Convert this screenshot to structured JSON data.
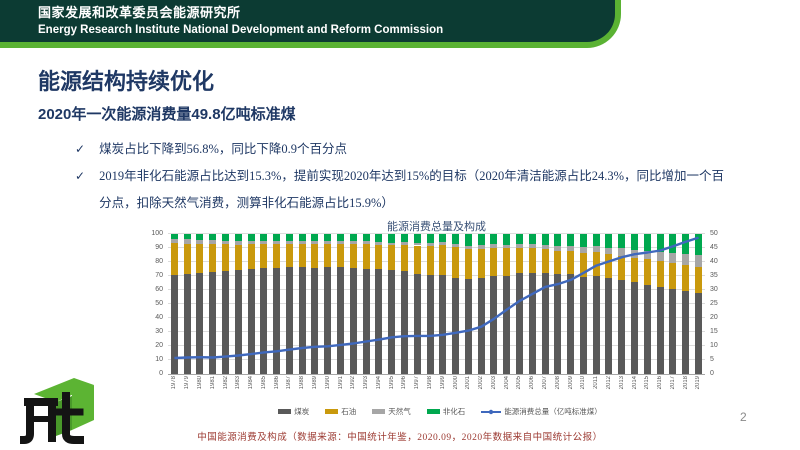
{
  "header": {
    "org_cn": "国家发展和改革委员会能源研究所",
    "org_en": "Energy Research Institute National Development and Reform Commission"
  },
  "slide": {
    "title": "能源结构持续优化",
    "subtitle": "2020年一次能源消费量49.8亿吨标准煤",
    "check_glyph": "✓",
    "bullets": [
      "煤炭占比下降到56.8%，同比下降0.9个百分点",
      "2019年非化石能源占比达到15.3%，提前实现2020年达到15%的目标（2020年清洁能源占比24.3%，同比增加一个百分点，扣除天然气消费，测算非化石能源占比15.9%）"
    ],
    "caption": "中国能源消费及构成（数据来源：中国统计年鉴，2020.09，2020年数据来自中国统计公报）",
    "page_number": "2"
  },
  "colors": {
    "header_dark": "#0c3b33",
    "header_green": "#5ab233",
    "title_navy": "#1f3864",
    "caption_red": "#9c3a32",
    "grid": "#dcdcdc",
    "axis_text": "#595959"
  },
  "chart_data": {
    "type": "bar",
    "subtype": "100%-stacked bars with line overlay",
    "title": "能源消费总量及构成",
    "grid": true,
    "legend_position": "bottom",
    "left_axis": {
      "min": 0,
      "max": 100,
      "step": 10
    },
    "right_axis": {
      "min": 0,
      "max": 50,
      "step": 5
    },
    "categories": [
      "1978",
      "1979",
      "1980",
      "1981",
      "1982",
      "1983",
      "1984",
      "1985",
      "1986",
      "1987",
      "1988",
      "1989",
      "1990",
      "1991",
      "1992",
      "1993",
      "1994",
      "1995",
      "1996",
      "1997",
      "1998",
      "1999",
      "2000",
      "2001",
      "2002",
      "2003",
      "2004",
      "2005",
      "2006",
      "2007",
      "2008",
      "2009",
      "2010",
      "2011",
      "2012",
      "2013",
      "2014",
      "2015",
      "2016",
      "2017",
      "2018",
      "2019"
    ],
    "series": [
      {
        "name": "煤炭",
        "color": "#595959",
        "values": [
          70.7,
          71.3,
          72.2,
          72.7,
          73.7,
          74.2,
          75.3,
          75.8,
          75.8,
          76.2,
          76.2,
          76.0,
          76.2,
          76.1,
          75.7,
          74.7,
          75.0,
          74.6,
          73.5,
          71.4,
          70.9,
          70.6,
          68.5,
          68.0,
          68.5,
          70.2,
          70.2,
          72.4,
          72.4,
          72.5,
          71.5,
          71.6,
          69.2,
          70.2,
          68.5,
          67.4,
          65.8,
          63.8,
          62.2,
          60.6,
          59.0,
          57.7
        ]
      },
      {
        "name": "石油",
        "color": "#c9990d",
        "values": [
          22.7,
          21.8,
          20.7,
          20.0,
          18.9,
          18.1,
          17.4,
          17.1,
          17.2,
          17.0,
          17.0,
          17.1,
          16.6,
          17.1,
          17.5,
          18.2,
          17.4,
          17.5,
          18.7,
          20.4,
          20.8,
          21.5,
          22.0,
          21.2,
          21.0,
          20.1,
          19.9,
          17.8,
          17.5,
          17.0,
          16.7,
          16.4,
          17.4,
          16.8,
          17.0,
          17.1,
          17.3,
          18.4,
          18.7,
          18.9,
          18.9,
          19.0
        ]
      },
      {
        "name": "天然气",
        "color": "#a6a6a6",
        "values": [
          3.2,
          3.3,
          3.1,
          2.8,
          2.5,
          2.4,
          2.4,
          2.2,
          2.3,
          2.1,
          2.1,
          2.0,
          2.1,
          2.0,
          1.9,
          1.9,
          1.9,
          1.8,
          1.8,
          1.8,
          1.8,
          2.0,
          2.2,
          2.4,
          2.3,
          2.3,
          2.3,
          2.4,
          2.7,
          3.0,
          3.4,
          3.5,
          4.0,
          4.6,
          4.8,
          5.3,
          5.6,
          5.8,
          6.1,
          6.9,
          7.6,
          8.0
        ]
      },
      {
        "name": "非化石",
        "color": "#00a84f",
        "values": [
          3.4,
          3.6,
          4.0,
          4.5,
          4.9,
          5.3,
          4.9,
          4.9,
          4.7,
          4.7,
          4.7,
          4.9,
          5.1,
          4.8,
          4.9,
          5.2,
          5.7,
          6.1,
          6.0,
          6.4,
          6.5,
          5.9,
          7.3,
          8.4,
          8.2,
          7.4,
          7.6,
          7.4,
          7.4,
          7.5,
          8.4,
          8.5,
          9.4,
          8.4,
          9.7,
          10.2,
          11.3,
          12.0,
          13.0,
          13.6,
          14.5,
          15.3
        ]
      }
    ],
    "line_series": {
      "name": "能源消费总量（亿吨标准煤）",
      "color": "#3f68bd",
      "axis": "right",
      "values": [
        5.7,
        5.9,
        6.0,
        5.9,
        6.2,
        6.6,
        7.1,
        7.7,
        8.1,
        8.7,
        9.3,
        9.7,
        9.9,
        10.4,
        10.9,
        11.6,
        12.3,
        13.1,
        13.5,
        13.6,
        13.6,
        14.0,
        14.7,
        15.5,
        16.9,
        19.7,
        23.0,
        26.1,
        28.6,
        31.1,
        32.1,
        33.6,
        36.1,
        38.7,
        40.2,
        41.7,
        42.8,
        43.4,
        44.1,
        45.6,
        47.2,
        48.7
      ]
    }
  }
}
